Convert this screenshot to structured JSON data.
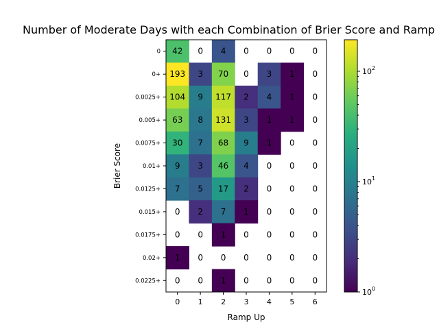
{
  "chart_data": {
    "type": "heatmap",
    "title": "Number of Moderate Days with each Combination of Brier Score and Ramp Up",
    "xlabel": "Ramp Up",
    "ylabel": "Brier Score",
    "x_categories": [
      "0",
      "1",
      "2",
      "3",
      "4",
      "5",
      "6"
    ],
    "y_categories": [
      "0",
      "0+",
      "0.0025+",
      "0.005+",
      "0.0075+",
      "0.01+",
      "0.0125+",
      "0.015+",
      "0.0175+",
      "0.02+",
      "0.0225+"
    ],
    "values": [
      [
        42,
        0,
        4,
        0,
        0,
        0,
        0
      ],
      [
        193,
        3,
        70,
        0,
        3,
        1,
        0
      ],
      [
        104,
        9,
        117,
        2,
        4,
        1,
        0
      ],
      [
        63,
        8,
        131,
        3,
        1,
        1,
        0
      ],
      [
        30,
        7,
        68,
        9,
        1,
        0,
        0
      ],
      [
        9,
        3,
        46,
        4,
        0,
        0,
        0
      ],
      [
        7,
        5,
        17,
        2,
        0,
        0,
        0
      ],
      [
        0,
        2,
        7,
        1,
        0,
        0,
        0
      ],
      [
        0,
        0,
        1,
        0,
        0,
        0,
        0
      ],
      [
        1,
        0,
        0,
        0,
        0,
        0,
        0
      ],
      [
        0,
        0,
        1,
        0,
        0,
        0,
        0
      ]
    ],
    "colorbar": {
      "scale": "log",
      "min": 1,
      "max": 193,
      "colormap": "viridis",
      "ticks": [
        {
          "base": "10",
          "exp": "0",
          "value": 1
        },
        {
          "base": "10",
          "exp": "1",
          "value": 10
        },
        {
          "base": "10",
          "exp": "2",
          "value": 100
        }
      ]
    },
    "zero_cells": "blank (white)",
    "grid": false
  }
}
